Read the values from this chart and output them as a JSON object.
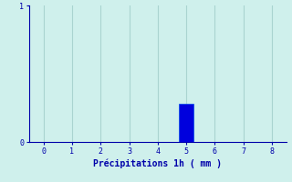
{
  "categories": [
    0,
    1,
    2,
    3,
    4,
    5,
    6,
    7,
    8
  ],
  "bar_values": [
    0,
    0,
    0,
    0,
    0,
    0.28,
    0,
    0,
    0
  ],
  "bar_color": "#0000dd",
  "bar_edge_color": "#0044ee",
  "background_color": "#cff0ec",
  "axes_facecolor": "#cff0ec",
  "figure_facecolor": "#cff0ec",
  "xlabel": "Précipitations 1h ( mm )",
  "ylabel": "",
  "xlim": [
    -0.5,
    8.5
  ],
  "ylim": [
    0,
    1.0
  ],
  "yticks": [
    0,
    1
  ],
  "xticks": [
    0,
    1,
    2,
    3,
    4,
    5,
    6,
    7,
    8
  ],
  "grid_color": "#aad4d0",
  "tick_color": "#0000aa",
  "label_color": "#0000aa",
  "bar_width": 0.5
}
